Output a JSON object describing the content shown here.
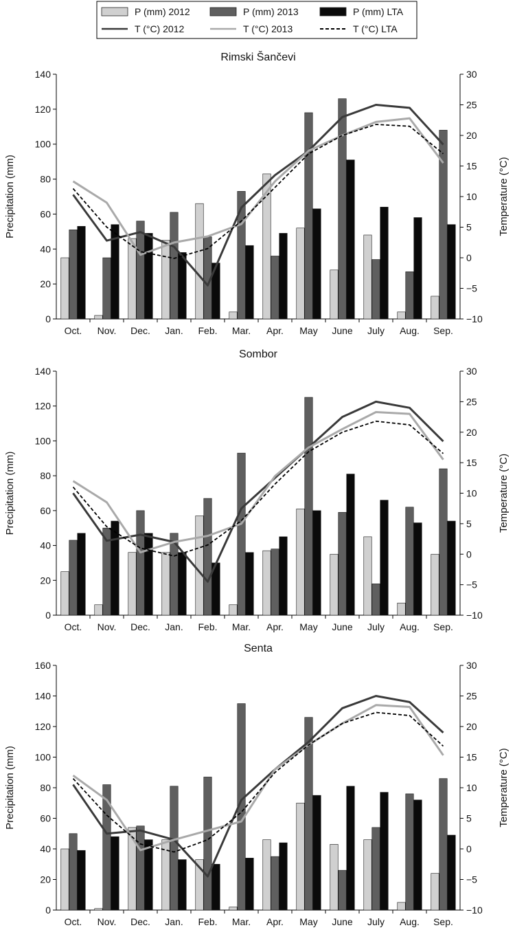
{
  "legend": {
    "entries": [
      {
        "label": "P (mm) 2012",
        "kind": "bar",
        "color": "#d0d0d0"
      },
      {
        "label": "P (mm) 2013",
        "kind": "bar",
        "color": "#5f5f5f"
      },
      {
        "label": "P (mm) LTA",
        "kind": "bar",
        "color": "#0a0a0a"
      },
      {
        "label": "T (°C) 2012",
        "kind": "line",
        "color": "#3a3a3a",
        "dash": false
      },
      {
        "label": "T (°C) 2013",
        "kind": "line",
        "color": "#a9a9a9",
        "dash": false
      },
      {
        "label": "T (°C) LTA",
        "kind": "line",
        "color": "#000000",
        "dash": true
      }
    ]
  },
  "chart_data": [
    {
      "type": "bar",
      "title": "Rimski Šančevi",
      "ylabel": "Precipitation (mm)",
      "y2label": "Temperature (°C)",
      "categories": [
        "Oct.",
        "Nov.",
        "Dec.",
        "Jan.",
        "Feb.",
        "Mar.",
        "Apr.",
        "May",
        "June",
        "July",
        "Aug.",
        "Sep."
      ],
      "ylim": [
        0,
        140
      ],
      "yticks": [
        0,
        20,
        40,
        60,
        80,
        100,
        120,
        140
      ],
      "y2lim": [
        -10,
        30
      ],
      "y2ticks": [
        -10,
        -5,
        0,
        5,
        10,
        15,
        20,
        25,
        30
      ],
      "bar_series": [
        {
          "name": "P (mm) 2012",
          "values": [
            35,
            2,
            46,
            45,
            66,
            4,
            83,
            52,
            28,
            48,
            4,
            13
          ]
        },
        {
          "name": "P (mm) 2013",
          "values": [
            51,
            35,
            56,
            61,
            47,
            73,
            36,
            118,
            126,
            34,
            27,
            108
          ]
        },
        {
          "name": "P (mm) LTA",
          "values": [
            53,
            54,
            49,
            38,
            32,
            42,
            49,
            63,
            91,
            64,
            58,
            54
          ]
        }
      ],
      "line_series": [
        {
          "name": "T (°C) 2012",
          "values": [
            10.3,
            2.8,
            4.2,
            1.8,
            -4.5,
            8.2,
            13.5,
            17.5,
            23.0,
            25.0,
            24.5,
            18.5
          ]
        },
        {
          "name": "T (°C) 2013",
          "values": [
            12.5,
            9.0,
            0.5,
            2.5,
            3.5,
            5.5,
            12.5,
            17.5,
            20.0,
            22.2,
            22.8,
            15.5
          ]
        },
        {
          "name": "T (°C) LTA",
          "values": [
            11.3,
            5.0,
            1.0,
            -0.1,
            1.5,
            6.0,
            11.5,
            17.0,
            20.0,
            21.8,
            21.5,
            17.0
          ]
        }
      ]
    },
    {
      "type": "bar",
      "title": "Sombor",
      "ylabel": "Precipitation (mm)",
      "y2label": "Temperature (°C)",
      "categories": [
        "Oct.",
        "Nov.",
        "Dec.",
        "Jan.",
        "Feb.",
        "Mar.",
        "Apr.",
        "May",
        "June",
        "July",
        "Aug.",
        "Sep."
      ],
      "ylim": [
        0,
        140
      ],
      "yticks": [
        0,
        20,
        40,
        60,
        80,
        100,
        120,
        140
      ],
      "y2lim": [
        -10,
        30
      ],
      "y2ticks": [
        -10,
        -5,
        0,
        5,
        10,
        15,
        20,
        25,
        30
      ],
      "bar_series": [
        {
          "name": "P (mm) 2012",
          "values": [
            25,
            6,
            36,
            36,
            57,
            6,
            37,
            61,
            35,
            45,
            7,
            35
          ]
        },
        {
          "name": "P (mm) 2013",
          "values": [
            43,
            50,
            60,
            47,
            67,
            93,
            38,
            125,
            59,
            18,
            62,
            84
          ]
        },
        {
          "name": "P (mm) LTA",
          "values": [
            47,
            54,
            47,
            36,
            30,
            36,
            45,
            60,
            81,
            66,
            53,
            54
          ]
        }
      ],
      "line_series": [
        {
          "name": "T (°C) 2012",
          "values": [
            10.0,
            2.2,
            3.2,
            2.0,
            -4.5,
            7.5,
            12.5,
            17.5,
            22.5,
            25.0,
            24.0,
            18.5
          ]
        },
        {
          "name": "T (°C) 2013",
          "values": [
            12.0,
            8.5,
            0.3,
            2.0,
            3.0,
            5.0,
            12.8,
            17.5,
            20.5,
            23.3,
            23.0,
            15.5
          ]
        },
        {
          "name": "T (°C) LTA",
          "values": [
            11.0,
            4.5,
            1.0,
            -0.3,
            1.5,
            5.5,
            11.5,
            16.8,
            20.0,
            21.8,
            21.2,
            16.5
          ]
        }
      ]
    },
    {
      "type": "bar",
      "title": "Senta",
      "ylabel": "Precipitation (mm)",
      "y2label": "Temperature (°C)",
      "categories": [
        "Oct.",
        "Nov.",
        "Dec.",
        "Jan.",
        "Feb.",
        "Mar.",
        "Apr.",
        "May",
        "June",
        "July",
        "Aug.",
        "Sep."
      ],
      "ylim": [
        0,
        160
      ],
      "yticks": [
        0,
        20,
        40,
        60,
        80,
        100,
        120,
        140,
        160
      ],
      "y2lim": [
        -10,
        30
      ],
      "y2ticks": [
        -10,
        -5,
        0,
        5,
        10,
        15,
        20,
        25,
        30
      ],
      "bar_series": [
        {
          "name": "P (mm) 2012",
          "values": [
            40,
            1,
            54,
            46,
            33,
            2,
            46,
            70,
            43,
            46,
            5,
            24
          ]
        },
        {
          "name": "P (mm) 2013",
          "values": [
            50,
            82,
            55,
            81,
            87,
            135,
            35,
            126,
            26,
            54,
            76,
            86
          ]
        },
        {
          "name": "P (mm) LTA",
          "values": [
            39,
            48,
            46,
            33,
            30,
            34,
            44,
            75,
            81,
            77,
            72,
            49
          ]
        }
      ],
      "line_series": [
        {
          "name": "T (°C) 2012",
          "values": [
            10.5,
            2.5,
            3.0,
            1.5,
            -4.5,
            8.0,
            13.0,
            17.5,
            23.0,
            25.0,
            24.0,
            19.0
          ]
        },
        {
          "name": "T (°C) 2013",
          "values": [
            12.0,
            8.0,
            -0.2,
            1.5,
            3.0,
            4.5,
            13.0,
            17.0,
            20.5,
            23.5,
            23.2,
            15.3
          ]
        },
        {
          "name": "T (°C) LTA",
          "values": [
            11.5,
            5.5,
            0.8,
            -0.5,
            1.5,
            6.0,
            12.5,
            17.0,
            20.5,
            22.3,
            21.8,
            16.8
          ]
        }
      ]
    }
  ]
}
